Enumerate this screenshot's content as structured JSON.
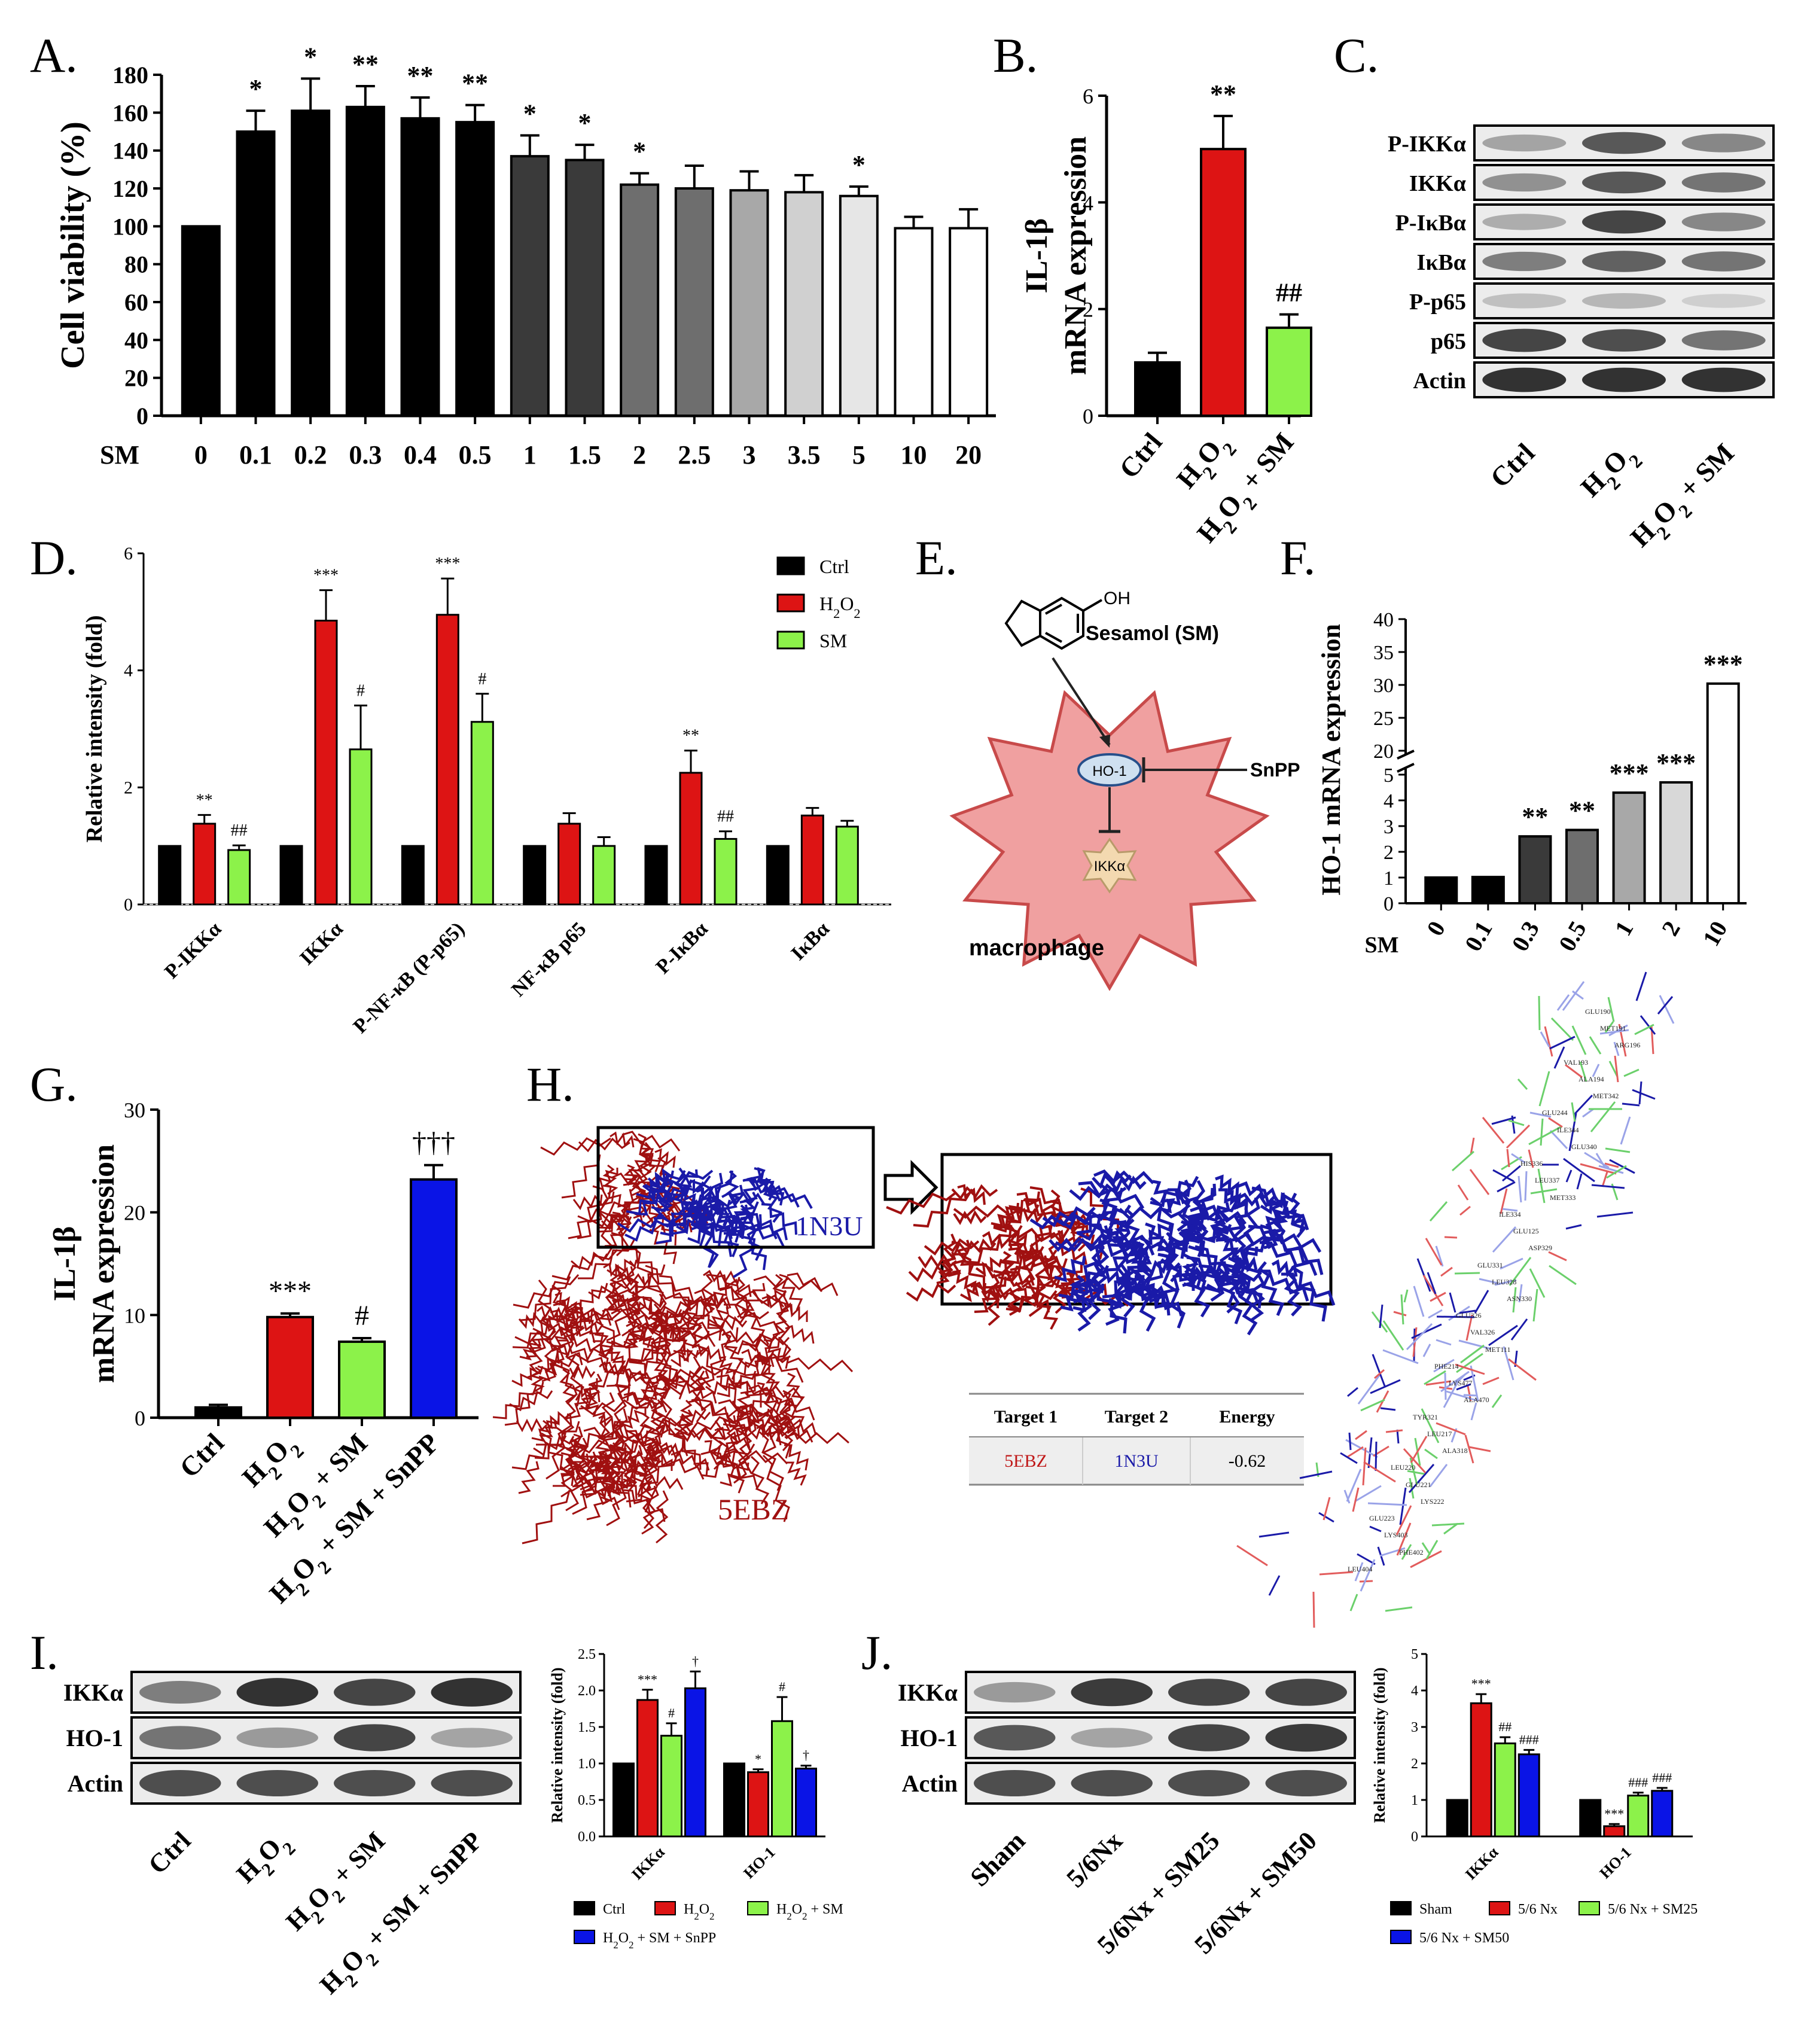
{
  "panels": {
    "A": "A.",
    "B": "B.",
    "C": "C.",
    "D": "D.",
    "E": "E.",
    "F": "F.",
    "G": "G.",
    "H": "H.",
    "I": "I.",
    "J": "J."
  },
  "colors": {
    "black": "#000000",
    "red": "#dd1414",
    "green": "#8cf24a",
    "blue": "#0a14e6",
    "gray1": "#3a3a3a",
    "gray2": "#6e6e6e",
    "gray3": "#a8a8a8",
    "gray4": "#d0d0d0",
    "cell_fill": "#f0a0a0",
    "cell_stroke": "#c84a4a",
    "protein_red": "#a01010",
    "protein_blue": "#1a1aa8"
  },
  "chart_data": [
    {
      "panel": "A",
      "type": "bar",
      "ylabel": "Cell viability (%)",
      "xprefix": "SM",
      "ylim": [
        0,
        180
      ],
      "yticks": [
        0,
        20,
        40,
        60,
        80,
        100,
        120,
        140,
        160,
        180
      ],
      "categories": [
        "0",
        "0.1",
        "0.2",
        "0.3",
        "0.4",
        "0.5",
        "1",
        "1.5",
        "2",
        "2.5",
        "3",
        "3.5",
        "5",
        "10",
        "20"
      ],
      "values": [
        100,
        150,
        161,
        163,
        157,
        155,
        137,
        135,
        122,
        120,
        119,
        118,
        116,
        99,
        99
      ],
      "errors": [
        0,
        11,
        17,
        11,
        11,
        9,
        11,
        8,
        6,
        12,
        10,
        9,
        5,
        6,
        10
      ],
      "fills": [
        "#000000",
        "#000000",
        "#000000",
        "#000000",
        "#000000",
        "#000000",
        "#3a3a3a",
        "#3a3a3a",
        "#6e6e6e",
        "#6e6e6e",
        "#a8a8a8",
        "#d0d0d0",
        "#e6e6e6",
        "#ffffff",
        "#ffffff"
      ],
      "sig": [
        "",
        "*",
        "*",
        "**",
        "**",
        "**",
        "*",
        "*",
        "*",
        "",
        "",
        "",
        "*",
        "",
        ""
      ]
    },
    {
      "panel": "B",
      "type": "bar",
      "ylabel_line1": "IL-1β",
      "ylabel_line2": "mRNA expression",
      "ylim": [
        0,
        6
      ],
      "yticks": [
        0,
        2,
        4,
        6
      ],
      "categories": [
        "Ctrl",
        "H2O2",
        "H2O2 + SM"
      ],
      "values": [
        1.0,
        5.0,
        1.65
      ],
      "errors": [
        0.18,
        0.62,
        0.25
      ],
      "fills": [
        "#000000",
        "#dd1414",
        "#8cf24a"
      ],
      "sig": [
        "",
        "**",
        "##"
      ]
    },
    {
      "panel": "D",
      "type": "bar",
      "ylabel": "Relative intensity (fold)",
      "ylim": [
        0,
        6
      ],
      "yticks": [
        0,
        2,
        4,
        6
      ],
      "categories": [
        "P-IKKα",
        "IKKα",
        "P-NF-κB (P-p65)",
        "NF-κB p65",
        "P-IκBα",
        "IκBα"
      ],
      "series": [
        {
          "name": "Ctrl",
          "color": "#000000",
          "values": [
            1,
            1,
            1,
            1,
            1,
            1
          ],
          "errors": [
            0,
            0,
            0,
            0,
            0,
            0
          ],
          "sig": [
            "",
            "",
            "",
            "",
            "",
            ""
          ]
        },
        {
          "name": "H2O2",
          "color": "#dd1414",
          "values": [
            1.38,
            4.85,
            4.95,
            1.38,
            2.25,
            1.52
          ],
          "errors": [
            0.15,
            0.52,
            0.62,
            0.18,
            0.38,
            0.13
          ],
          "sig": [
            "**",
            "***",
            "***",
            "",
            "**",
            ""
          ]
        },
        {
          "name": "SM",
          "color": "#8cf24a",
          "values": [
            0.93,
            2.65,
            3.12,
            1.0,
            1.12,
            1.33
          ],
          "errors": [
            0.08,
            0.75,
            0.48,
            0.15,
            0.13,
            0.1
          ],
          "sig": [
            "##",
            "#",
            "#",
            "",
            "##",
            ""
          ]
        }
      ]
    },
    {
      "panel": "F",
      "type": "bar",
      "ylabel": "HO-1 mRNA expression",
      "xprefix": "SM",
      "yticks_low": [
        0,
        1,
        2,
        3,
        4,
        5
      ],
      "yticks_high": [
        20,
        25,
        30,
        35,
        40
      ],
      "categories": [
        "0",
        "0.1",
        "0.3",
        "0.5",
        "1",
        "2",
        "10"
      ],
      "values": [
        1.0,
        1.02,
        2.6,
        2.85,
        4.3,
        4.7,
        30.2
      ],
      "fills": [
        "#000000",
        "#000000",
        "#3a3a3a",
        "#6e6e6e",
        "#a8a8a8",
        "#d8d8d8",
        "#ffffff"
      ],
      "sig": [
        "",
        "",
        "**",
        "**",
        "***",
        "***",
        "***"
      ]
    },
    {
      "panel": "G",
      "type": "bar",
      "ylabel_line1": "IL-1β",
      "ylabel_line2": "mRNA expression",
      "ylim": [
        0,
        30
      ],
      "yticks": [
        0,
        10,
        20,
        30
      ],
      "categories": [
        "Ctrl",
        "H2O2",
        "H2O2 + SM",
        "H2O2 + SM + SnPP"
      ],
      "values": [
        1.0,
        9.8,
        7.4,
        23.2
      ],
      "errors": [
        0.25,
        0.35,
        0.35,
        1.4
      ],
      "fills": [
        "#000000",
        "#dd1414",
        "#8cf24a",
        "#0a14e6"
      ],
      "sig": [
        "",
        "***",
        "#",
        "†††"
      ]
    },
    {
      "panel": "I",
      "type": "bar",
      "ylabel": "Relative intensity (fold)",
      "ylim": [
        0,
        2.5
      ],
      "yticks": [
        "0.0",
        "0.5",
        "1.0",
        "1.5",
        "2.0",
        "2.5"
      ],
      "categories": [
        "IKKα",
        "HO-1"
      ],
      "series": [
        {
          "name": "Ctrl",
          "color": "#000000",
          "values": [
            1.0,
            1.0
          ],
          "errors": [
            0,
            0
          ],
          "sig": [
            "",
            ""
          ]
        },
        {
          "name": "H2O2",
          "color": "#dd1414",
          "values": [
            1.87,
            0.88
          ],
          "errors": [
            0.14,
            0.04
          ],
          "sig": [
            "***",
            "*"
          ]
        },
        {
          "name": "H2O2 + SM",
          "color": "#8cf24a",
          "values": [
            1.38,
            1.58
          ],
          "errors": [
            0.17,
            0.33
          ],
          "sig": [
            "#",
            "#"
          ]
        },
        {
          "name": "H2O2 + SM + SnPP",
          "color": "#0a14e6",
          "values": [
            2.03,
            0.93
          ],
          "errors": [
            0.23,
            0.04
          ],
          "sig": [
            "†",
            "†"
          ]
        }
      ]
    },
    {
      "panel": "J",
      "type": "bar",
      "ylabel": "Relative intensity (fold)",
      "ylim": [
        0,
        5
      ],
      "yticks": [
        0,
        1,
        2,
        3,
        4,
        5
      ],
      "categories": [
        "IKKα",
        "HO-1"
      ],
      "series": [
        {
          "name": "Sham",
          "color": "#000000",
          "values": [
            1.0,
            1.0
          ],
          "errors": [
            0,
            0
          ],
          "sig": [
            "",
            ""
          ]
        },
        {
          "name": "5/6 Nx",
          "color": "#dd1414",
          "values": [
            3.65,
            0.28
          ],
          "errors": [
            0.25,
            0.06
          ],
          "sig": [
            "***",
            "***"
          ]
        },
        {
          "name": "5/6 Nx + SM25",
          "color": "#8cf24a",
          "values": [
            2.55,
            1.12
          ],
          "errors": [
            0.17,
            0.08
          ],
          "sig": [
            "##",
            "###"
          ]
        },
        {
          "name": "5/6 Nx + SM50",
          "color": "#0a14e6",
          "values": [
            2.25,
            1.25
          ],
          "errors": [
            0.12,
            0.08
          ],
          "sig": [
            "###",
            "###"
          ]
        }
      ]
    }
  ],
  "blot_C": {
    "rows": [
      "P-IKKα",
      "IKKα",
      "P-IκBα",
      "IκBα",
      "P-p65",
      "p65",
      "Actin"
    ],
    "lanes": [
      "Ctrl",
      "H2O2",
      "H2O2 + SM"
    ],
    "intensity": [
      [
        0.35,
        0.75,
        0.5
      ],
      [
        0.45,
        0.75,
        0.6
      ],
      [
        0.3,
        0.85,
        0.5
      ],
      [
        0.55,
        0.7,
        0.6
      ],
      [
        0.2,
        0.25,
        0.12
      ],
      [
        0.85,
        0.8,
        0.6
      ],
      [
        0.95,
        0.95,
        0.95
      ]
    ]
  },
  "blot_I": {
    "rows": [
      "IKKα",
      "HO-1",
      "Actin"
    ],
    "lanes": [
      "Ctrl",
      "H2O2",
      "H2O2 + SM",
      "H2O2 + SM + SnPP"
    ],
    "intensity": [
      [
        0.55,
        0.95,
        0.85,
        0.95
      ],
      [
        0.6,
        0.4,
        0.85,
        0.35
      ],
      [
        0.8,
        0.8,
        0.8,
        0.8
      ]
    ]
  },
  "blot_J": {
    "rows": [
      "IKKα",
      "HO-1",
      "Actin"
    ],
    "lanes": [
      "Sham",
      "5/6Nx",
      "5/6Nx + SM25",
      "5/6Nx + SM50"
    ],
    "intensity": [
      [
        0.4,
        0.9,
        0.85,
        0.85
      ],
      [
        0.75,
        0.35,
        0.85,
        0.9
      ],
      [
        0.8,
        0.8,
        0.8,
        0.8
      ]
    ]
  },
  "diagram_E": {
    "oh": "OH",
    "compound": "Sesamol (SM)",
    "ho1": "HO-1",
    "snpp": "SnPP",
    "ikka": "IKKα",
    "cell": "macrophage"
  },
  "docking_H": {
    "label_1n3u": "1N3U",
    "label_5ebz": "5EBZ",
    "table_headers": [
      "Target 1",
      "Target 2",
      "Energy"
    ],
    "table_row": [
      "5EBZ",
      "1N3U",
      "-0.62"
    ],
    "residue_labels": [
      "GLU190",
      "MET191",
      "ARG196",
      "VAL193",
      "ALA194",
      "MET342",
      "GLU244",
      "ILE344",
      "GLU340",
      "HIS336",
      "LEU337",
      "MET333",
      "ILE334",
      "GLU125",
      "ASP329",
      "GLU331",
      "LEU328",
      "ASN330",
      "GLU326",
      "VAL326",
      "MET111",
      "PHE214",
      "LYS477",
      "ALA470",
      "TYR321",
      "LEU217",
      "ALA318",
      "LEU220",
      "GLU221",
      "LYS222",
      "GLU223",
      "LYS403",
      "PHE402",
      "LEU404"
    ]
  }
}
